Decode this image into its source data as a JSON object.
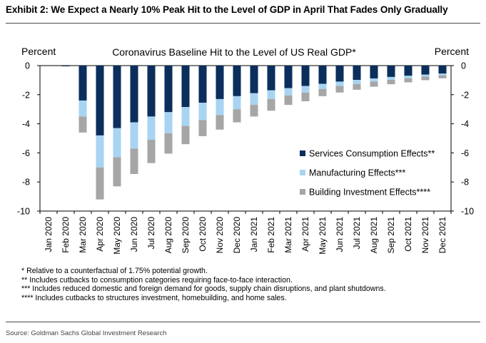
{
  "header": {
    "title": "Exhibit 2: We Expect a Nearly 10% Peak Hit to the Level of GDP in April That Fades Only Gradually"
  },
  "chart_data": {
    "type": "bar",
    "stacked": true,
    "title": "Coronavirus Baseline Hit to the Level of US Real GDP*",
    "ylabel_left": "Percent",
    "ylabel_right": "Percent",
    "ylim": [
      -10,
      0
    ],
    "yticks": [
      0,
      -2,
      -4,
      -6,
      -8,
      -10
    ],
    "grid": false,
    "legend_position": "right-middle",
    "categories": [
      "Jan 2020",
      "Feb 2020",
      "Mar 2020",
      "Apr 2020",
      "May 2020",
      "Jun 2020",
      "Jul 2020",
      "Aug 2020",
      "Sep 2020",
      "Oct 2020",
      "Nov 2020",
      "Dec 2020",
      "Jan 2021",
      "Feb 2021",
      "Mar 2021",
      "Apr 2021",
      "May 2021",
      "Jun 2021",
      "Jul 2021",
      "Aug 2021",
      "Sep 2021",
      "Oct 2021",
      "Nov 2021",
      "Dec 2021"
    ],
    "series": [
      {
        "name": "Services Consumption Effects**",
        "color": "#0b2e5c",
        "values": [
          0,
          -0.05,
          -2.4,
          -4.8,
          -4.3,
          -3.9,
          -3.5,
          -3.2,
          -2.85,
          -2.55,
          -2.3,
          -2.1,
          -1.9,
          -1.7,
          -1.55,
          -1.4,
          -1.25,
          -1.1,
          -0.98,
          -0.88,
          -0.78,
          -0.7,
          -0.62,
          -0.55
        ]
      },
      {
        "name": "Manufacturing Effects***",
        "color": "#a8d4f2",
        "values": [
          0,
          0,
          -1.1,
          -2.2,
          -2.0,
          -1.8,
          -1.6,
          -1.45,
          -1.3,
          -1.2,
          -1.1,
          -0.9,
          -0.8,
          -0.6,
          -0.5,
          -0.45,
          -0.35,
          -0.3,
          -0.28,
          -0.22,
          -0.2,
          -0.17,
          -0.14,
          -0.12
        ]
      },
      {
        "name": "Building Investment Effects****",
        "color": "#a6a6a6",
        "values": [
          0,
          0,
          -1.1,
          -2.2,
          -2.0,
          -1.75,
          -1.6,
          -1.4,
          -1.25,
          -1.1,
          -1.0,
          -0.9,
          -0.8,
          -0.8,
          -0.65,
          -0.6,
          -0.5,
          -0.45,
          -0.4,
          -0.35,
          -0.3,
          -0.28,
          -0.24,
          -0.2
        ]
      }
    ]
  },
  "footnotes": [
    "* Relative to a counterfactual of 1.75% potential growth.",
    "** Includes cutbacks to consumption categories requiring face-to-face interaction.",
    "*** Includes reduced domestic and foreign demand for goods, supply chain disruptions, and plant shutdowns.",
    "**** Includes cutbacks to structures investment, homebuilding, and home sales."
  ],
  "source": "Source: Goldman Sachs Global Investment Research"
}
